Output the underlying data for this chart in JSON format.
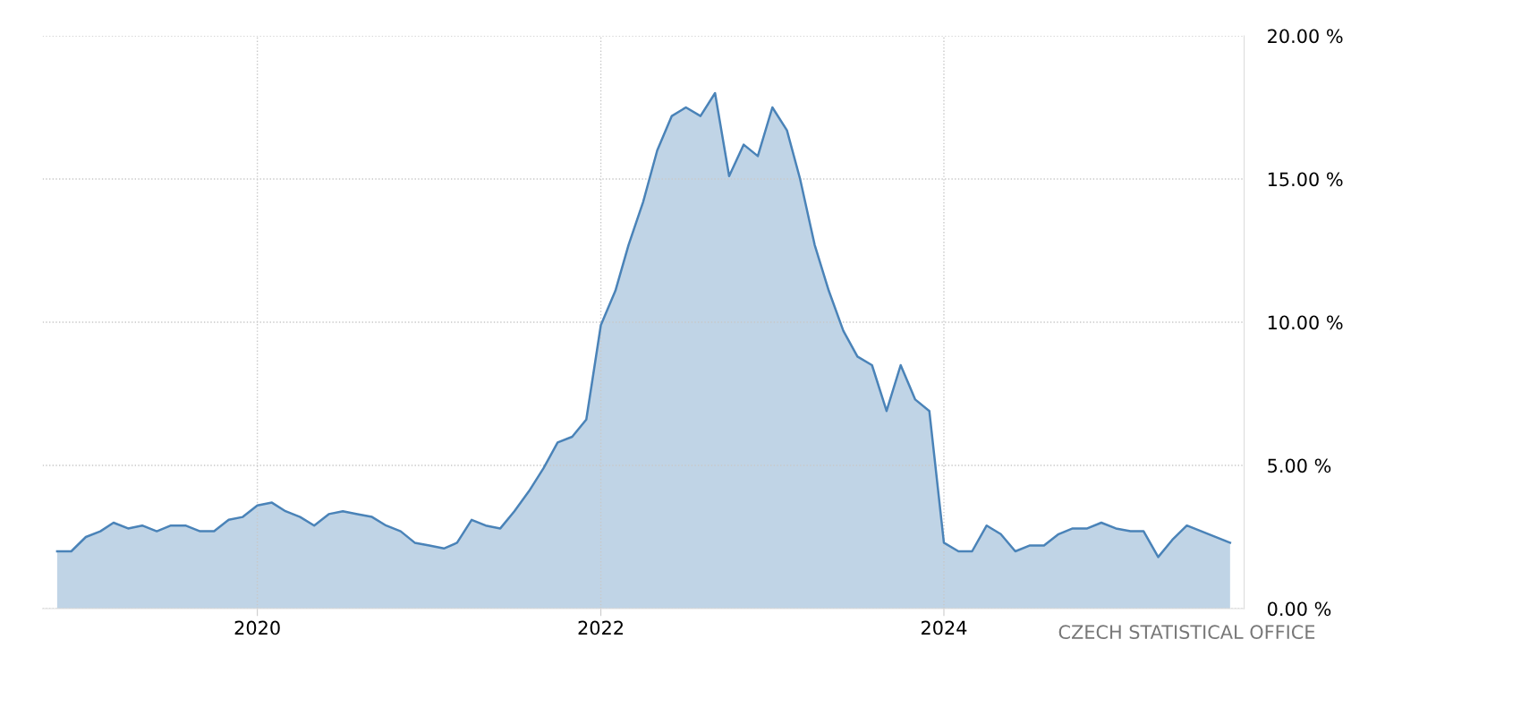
{
  "chart_data": {
    "type": "area",
    "x": [
      "2018-11",
      "2018-12",
      "2019-01",
      "2019-02",
      "2019-03",
      "2019-04",
      "2019-05",
      "2019-06",
      "2019-07",
      "2019-08",
      "2019-09",
      "2019-10",
      "2019-11",
      "2019-12",
      "2020-01",
      "2020-02",
      "2020-03",
      "2020-04",
      "2020-05",
      "2020-06",
      "2020-07",
      "2020-08",
      "2020-09",
      "2020-10",
      "2020-11",
      "2020-12",
      "2021-01",
      "2021-02",
      "2021-03",
      "2021-04",
      "2021-05",
      "2021-06",
      "2021-07",
      "2021-08",
      "2021-09",
      "2021-10",
      "2021-11",
      "2021-12",
      "2022-01",
      "2022-02",
      "2022-03",
      "2022-04",
      "2022-05",
      "2022-06",
      "2022-07",
      "2022-08",
      "2022-09",
      "2022-10",
      "2022-11",
      "2022-12",
      "2023-01",
      "2023-02",
      "2023-03",
      "2023-04",
      "2023-05",
      "2023-06",
      "2023-07",
      "2023-08",
      "2023-09",
      "2023-10",
      "2023-11",
      "2023-12",
      "2024-01",
      "2024-02",
      "2024-03",
      "2024-04",
      "2024-05",
      "2024-06",
      "2024-07",
      "2024-08",
      "2024-09",
      "2024-10",
      "2024-11",
      "2024-12",
      "2025-01",
      "2025-02",
      "2025-03",
      "2025-04",
      "2025-05",
      "2025-06",
      "2025-09"
    ],
    "series": [
      {
        "color": "#4a83b8",
        "values": [
          2.0,
          2.0,
          2.5,
          2.7,
          3.0,
          2.8,
          2.9,
          2.7,
          2.9,
          2.9,
          2.7,
          2.7,
          3.1,
          3.2,
          3.6,
          3.7,
          3.4,
          3.2,
          2.9,
          3.3,
          3.4,
          3.3,
          3.2,
          2.9,
          2.7,
          2.3,
          2.2,
          2.1,
          2.3,
          3.1,
          2.9,
          2.8,
          3.4,
          4.1,
          4.9,
          5.8,
          6.0,
          6.6,
          9.9,
          11.1,
          12.7,
          14.2,
          16.0,
          17.2,
          17.5,
          17.2,
          18.0,
          15.1,
          16.2,
          15.8,
          17.5,
          16.7,
          15.0,
          12.7,
          11.1,
          9.7,
          8.8,
          8.5,
          6.9,
          8.5,
          7.3,
          6.9,
          2.3,
          2.0,
          2.0,
          2.9,
          2.6,
          2.0,
          2.2,
          2.2,
          2.6,
          2.8,
          2.8,
          3.0,
          2.8,
          2.7,
          2.7,
          1.8,
          2.4,
          2.9,
          2.3
        ]
      }
    ],
    "xlim": [
      "2018-10",
      "2025-10"
    ],
    "xticks": [
      "2020",
      "2022",
      "2024"
    ],
    "ylim": [
      0,
      20
    ],
    "yticks": [
      {
        "value": 0,
        "label": "0.00 %"
      },
      {
        "value": 5,
        "label": "5.00 %"
      },
      {
        "value": 10,
        "label": "10.00 %"
      },
      {
        "value": 15,
        "label": "15.00 %"
      },
      {
        "value": 20,
        "label": "20.00 %"
      }
    ],
    "grid": true,
    "annotations": [
      "CZECH STATISTICAL OFFICE"
    ]
  }
}
